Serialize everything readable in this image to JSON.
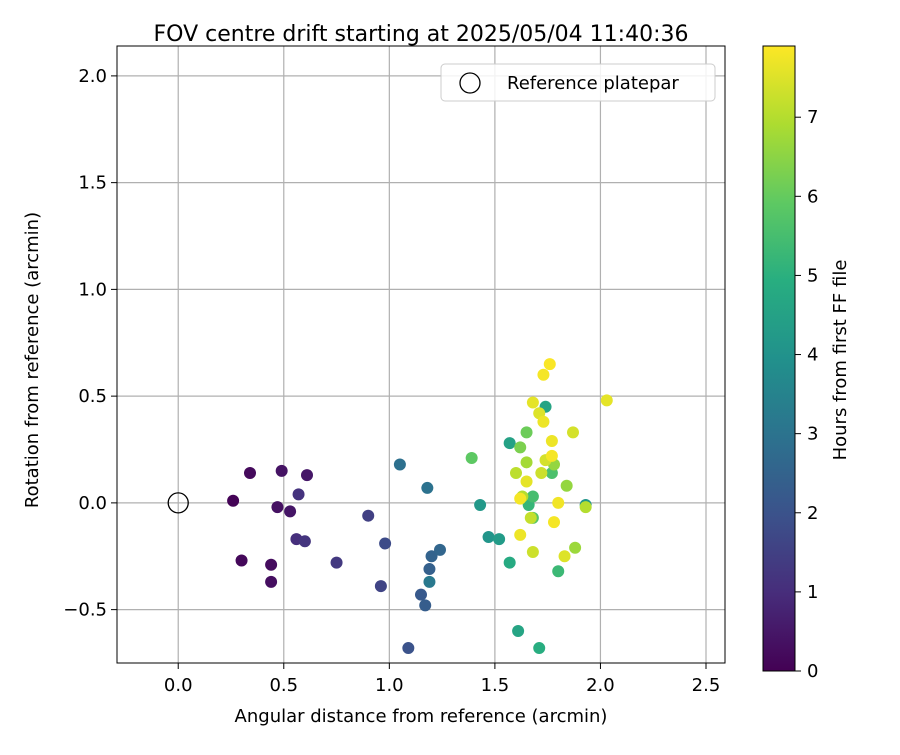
{
  "chart_data": {
    "type": "scatter",
    "title": "FOV centre drift starting at 2025/05/04 11:40:36",
    "xlabel": "Angular distance from reference (arcmin)",
    "ylabel": "Rotation from reference (arcmin)",
    "xlim": [
      -0.29,
      2.59
    ],
    "ylim": [
      -0.75,
      2.14
    ],
    "xticks": [
      0.0,
      0.5,
      1.0,
      1.5,
      2.0,
      2.5
    ],
    "xtick_labels": [
      "0.0",
      "0.5",
      "1.0",
      "1.5",
      "2.0",
      "2.5"
    ],
    "yticks": [
      -0.5,
      0.0,
      0.5,
      1.0,
      1.5,
      2.0
    ],
    "ytick_labels": [
      "−0.5",
      "0.0",
      "0.5",
      "1.0",
      "1.5",
      "2.0"
    ],
    "grid": true,
    "legend": {
      "placement": "top-right",
      "entries": [
        "Reference platepar"
      ]
    },
    "colorbar": {
      "label": "Hours from first FF file",
      "colormap": "viridis",
      "range": [
        0,
        7.9
      ],
      "ticks": [
        0,
        1,
        2,
        3,
        4,
        5,
        6,
        7
      ],
      "tick_labels": [
        "0",
        "1",
        "2",
        "3",
        "4",
        "5",
        "6",
        "7"
      ]
    },
    "reference": {
      "x": 0.0,
      "y": 0.0,
      "name": "Reference platepar"
    },
    "points": [
      {
        "x": 0.26,
        "y": 0.01,
        "h": 0.05
      },
      {
        "x": 0.3,
        "y": -0.27,
        "h": 0.15
      },
      {
        "x": 0.34,
        "y": 0.14,
        "h": 0.2
      },
      {
        "x": 0.44,
        "y": -0.29,
        "h": 0.25
      },
      {
        "x": 0.44,
        "y": -0.37,
        "h": 0.3
      },
      {
        "x": 0.47,
        "y": -0.02,
        "h": 0.35
      },
      {
        "x": 0.49,
        "y": 0.15,
        "h": 0.4
      },
      {
        "x": 0.53,
        "y": -0.04,
        "h": 0.45
      },
      {
        "x": 0.61,
        "y": 0.13,
        "h": 0.5
      },
      {
        "x": 0.56,
        "y": -0.17,
        "h": 1.05
      },
      {
        "x": 0.57,
        "y": 0.04,
        "h": 1.15
      },
      {
        "x": 0.6,
        "y": -0.18,
        "h": 1.2
      },
      {
        "x": 0.75,
        "y": -0.28,
        "h": 1.3
      },
      {
        "x": 0.9,
        "y": -0.06,
        "h": 1.5
      },
      {
        "x": 0.96,
        "y": -0.39,
        "h": 1.6
      },
      {
        "x": 0.98,
        "y": -0.19,
        "h": 1.8
      },
      {
        "x": 1.09,
        "y": -0.68,
        "h": 2.0
      },
      {
        "x": 1.15,
        "y": -0.43,
        "h": 2.2
      },
      {
        "x": 1.17,
        "y": -0.48,
        "h": 2.3
      },
      {
        "x": 1.19,
        "y": -0.31,
        "h": 2.4
      },
      {
        "x": 1.2,
        "y": -0.25,
        "h": 2.5
      },
      {
        "x": 1.24,
        "y": -0.22,
        "h": 2.6
      },
      {
        "x": 1.05,
        "y": 0.18,
        "h": 2.9
      },
      {
        "x": 1.18,
        "y": 0.07,
        "h": 2.95
      },
      {
        "x": 1.19,
        "y": -0.37,
        "h": 3.2
      },
      {
        "x": 1.47,
        "y": -0.16,
        "h": 4.1
      },
      {
        "x": 1.43,
        "y": -0.01,
        "h": 4.2
      },
      {
        "x": 1.52,
        "y": -0.17,
        "h": 4.3
      },
      {
        "x": 1.57,
        "y": 0.28,
        "h": 4.5
      },
      {
        "x": 1.61,
        "y": -0.6,
        "h": 4.6
      },
      {
        "x": 1.74,
        "y": 0.45,
        "h": 4.6
      },
      {
        "x": 1.71,
        "y": -0.68,
        "h": 4.9
      },
      {
        "x": 1.57,
        "y": -0.28,
        "h": 4.8
      },
      {
        "x": 1.93,
        "y": -0.01,
        "h": 4.1
      },
      {
        "x": 1.66,
        "y": -0.01,
        "h": 5.2
      },
      {
        "x": 1.77,
        "y": 0.14,
        "h": 5.6
      },
      {
        "x": 1.68,
        "y": 0.03,
        "h": 5.5
      },
      {
        "x": 1.39,
        "y": 0.21,
        "h": 5.9
      },
      {
        "x": 1.65,
        "y": 0.33,
        "h": 6.1
      },
      {
        "x": 1.62,
        "y": 0.26,
        "h": 6.3
      },
      {
        "x": 1.8,
        "y": -0.32,
        "h": 5.3
      },
      {
        "x": 1.68,
        "y": -0.07,
        "h": 5.8
      },
      {
        "x": 1.88,
        "y": -0.21,
        "h": 6.7
      },
      {
        "x": 1.84,
        "y": 0.08,
        "h": 6.6
      },
      {
        "x": 1.78,
        "y": 0.18,
        "h": 6.6
      },
      {
        "x": 1.65,
        "y": 0.19,
        "h": 6.8
      },
      {
        "x": 1.6,
        "y": 0.14,
        "h": 7.1
      },
      {
        "x": 1.63,
        "y": 0.03,
        "h": 7.0
      },
      {
        "x": 1.67,
        "y": -0.07,
        "h": 7.2
      },
      {
        "x": 1.68,
        "y": -0.23,
        "h": 7.3
      },
      {
        "x": 1.72,
        "y": 0.14,
        "h": 7.3
      },
      {
        "x": 1.74,
        "y": 0.2,
        "h": 7.4
      },
      {
        "x": 1.62,
        "y": -0.15,
        "h": 7.7
      },
      {
        "x": 1.83,
        "y": -0.25,
        "h": 7.5
      },
      {
        "x": 1.93,
        "y": -0.02,
        "h": 7.0
      },
      {
        "x": 1.87,
        "y": 0.33,
        "h": 7.4
      },
      {
        "x": 1.68,
        "y": 0.47,
        "h": 7.6
      },
      {
        "x": 1.71,
        "y": 0.42,
        "h": 7.5
      },
      {
        "x": 1.73,
        "y": 0.38,
        "h": 7.7
      },
      {
        "x": 1.77,
        "y": 0.29,
        "h": 7.7
      },
      {
        "x": 1.77,
        "y": 0.22,
        "h": 7.8
      },
      {
        "x": 1.65,
        "y": 0.1,
        "h": 7.6
      },
      {
        "x": 1.62,
        "y": 0.02,
        "h": 7.8
      },
      {
        "x": 1.8,
        "y": 0.0,
        "h": 7.75
      },
      {
        "x": 1.78,
        "y": -0.09,
        "h": 7.8
      },
      {
        "x": 1.73,
        "y": 0.6,
        "h": 7.8
      },
      {
        "x": 1.76,
        "y": 0.65,
        "h": 7.85
      },
      {
        "x": 2.03,
        "y": 0.48,
        "h": 7.6
      }
    ]
  }
}
